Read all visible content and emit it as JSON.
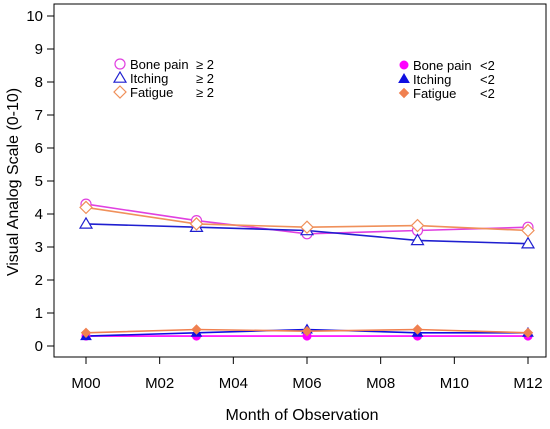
{
  "chart_data": {
    "type": "line",
    "xlabel": "Month of Observation",
    "ylabel": "Visual Analog Scale (0-10)",
    "x_ticks": [
      "M00",
      "M02",
      "M04",
      "M06",
      "M08",
      "M10",
      "M12"
    ],
    "x_months": [
      0,
      3,
      6,
      9,
      12
    ],
    "xlim": [
      0,
      12
    ],
    "ylim": [
      0,
      10
    ],
    "y_ticks": [
      0,
      1,
      2,
      3,
      4,
      5,
      6,
      7,
      8,
      9,
      10
    ],
    "grid": false,
    "legends": [
      {
        "placement": "top-left",
        "entries": [
          {
            "label": "Bone pain",
            "cond": "≥ 2"
          },
          {
            "label": "Itching",
            "cond": "≥ 2"
          },
          {
            "label": "Fatigue",
            "cond": "≥ 2"
          }
        ]
      },
      {
        "placement": "top-right",
        "entries": [
          {
            "label": "Bone pain",
            "cond": "<2"
          },
          {
            "label": "Itching",
            "cond": "<2"
          },
          {
            "label": "Fatigue",
            "cond": "<2"
          }
        ]
      }
    ],
    "series": [
      {
        "name": "Bone pain ≥ 2",
        "symbol": "open-circle",
        "color": "#e040e0",
        "values": [
          4.3,
          3.8,
          3.4,
          3.5,
          3.6
        ]
      },
      {
        "name": "Itching ≥ 2",
        "symbol": "open-triangle",
        "color": "#1f1fd0",
        "values": [
          3.7,
          3.6,
          3.5,
          3.2,
          3.1
        ]
      },
      {
        "name": "Fatigue ≥ 2",
        "symbol": "open-diamond",
        "color": "#f0905a",
        "values": [
          4.2,
          3.7,
          3.6,
          3.65,
          3.5
        ]
      },
      {
        "name": "Bone pain <2",
        "symbol": "filled-circle",
        "color": "#ff00ff",
        "values": [
          0.3,
          0.3,
          0.3,
          0.3,
          0.3
        ]
      },
      {
        "name": "Itching <2",
        "symbol": "filled-triangle",
        "color": "#1010e0",
        "values": [
          0.3,
          0.4,
          0.5,
          0.4,
          0.4
        ]
      },
      {
        "name": "Fatigue <2",
        "symbol": "filled-diamond",
        "color": "#f08050",
        "values": [
          0.4,
          0.5,
          0.45,
          0.5,
          0.4
        ]
      }
    ]
  }
}
